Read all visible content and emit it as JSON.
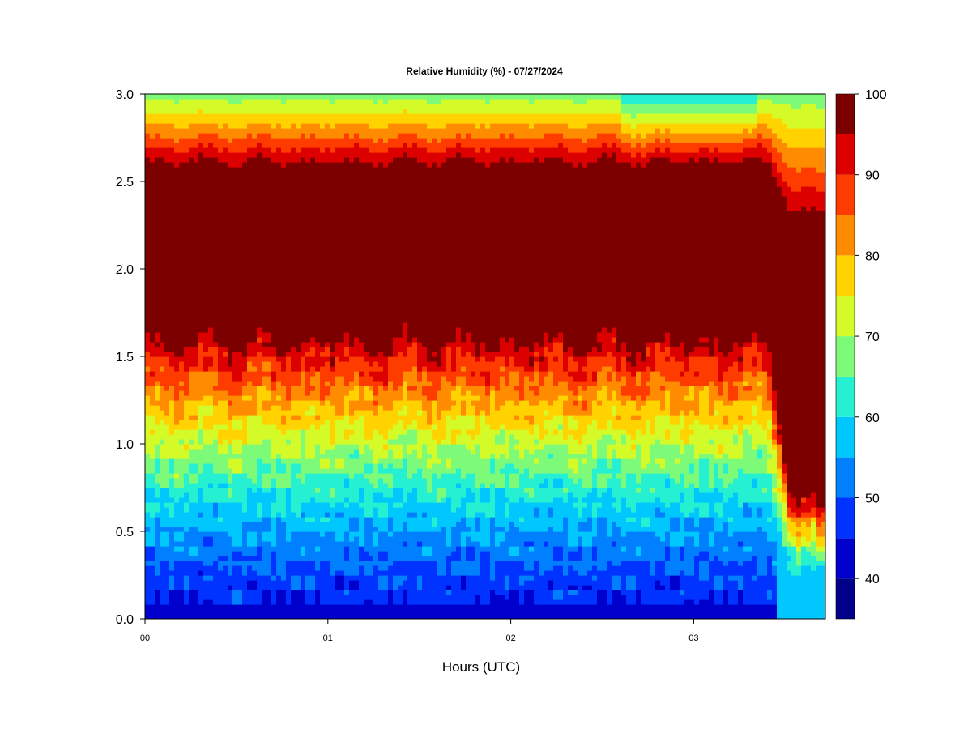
{
  "chart_data": {
    "type": "heatmap",
    "subtype": "filled-contour",
    "title": "Relative Humidity (%) - 07/27/2024",
    "xlabel": "Hours (UTC)",
    "ylabel": "",
    "x_ticks": [
      "00",
      "01",
      "02",
      "03"
    ],
    "x_range_hours": [
      0,
      3.72
    ],
    "y_ticks": [
      "0.0",
      "0.5",
      "1.0",
      "1.5",
      "2.0",
      "2.5",
      "3.0"
    ],
    "ylim": [
      0,
      3.0
    ],
    "colorbar": {
      "ticks": [
        "40",
        "50",
        "60",
        "70",
        "80",
        "90",
        "100"
      ],
      "range": [
        35,
        100
      ],
      "levels": [
        35,
        40,
        45,
        50,
        55,
        60,
        65,
        70,
        75,
        80,
        85,
        90,
        95,
        100
      ],
      "colors": [
        "#00008a",
        "#0000cd",
        "#0033ff",
        "#0080ff",
        "#00c8ff",
        "#26f0d2",
        "#7dfa78",
        "#d4fa28",
        "#ffd200",
        "#ff8c00",
        "#ff3c00",
        "#dc0000",
        "#7d0000"
      ]
    },
    "profile_boundaries_km": {
      "rh95_bottom": 1.58,
      "rh95_top": 2.62,
      "rh_above_95_over_top": 0.2,
      "rh_at_surface_approx": 45
    },
    "grid": false,
    "legend": "colorbar-right"
  }
}
